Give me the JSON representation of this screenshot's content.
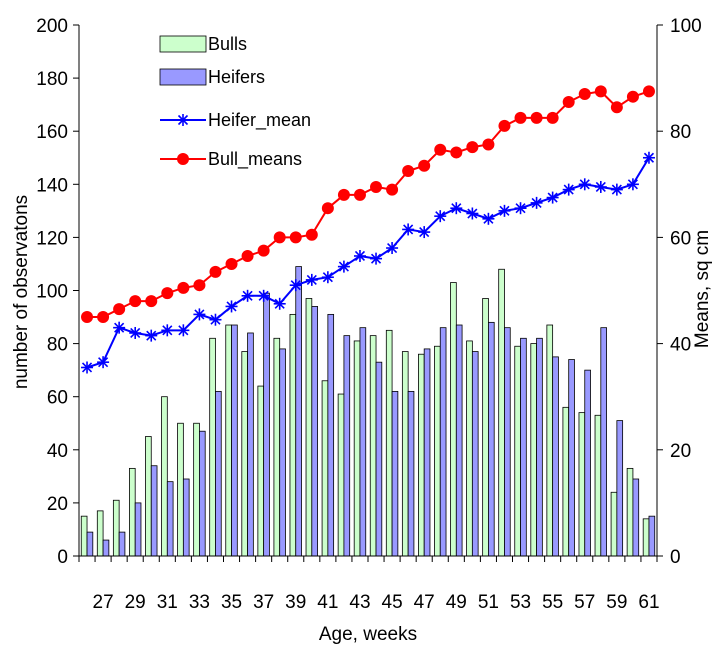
{
  "chart_data": {
    "type": "bar",
    "xlabel": "Age, weeks",
    "ylabel_left": "number of observatons",
    "ylabel_right": "Means, sq cm",
    "ylim_left": [
      0,
      200
    ],
    "ylim_right": [
      0,
      100
    ],
    "yticks_left": [
      "0",
      "20",
      "40",
      "60",
      "80",
      "100",
      "120",
      "140",
      "160",
      "180",
      "200"
    ],
    "yticks_right": [
      "0",
      "20",
      "40",
      "60",
      "80",
      "100"
    ],
    "x": [
      26,
      27,
      28,
      29,
      30,
      31,
      32,
      33,
      34,
      35,
      36,
      37,
      38,
      39,
      40,
      41,
      42,
      43,
      44,
      45,
      46,
      47,
      48,
      49,
      50,
      51,
      52,
      53,
      54,
      55,
      56,
      57,
      58,
      59,
      60,
      61
    ],
    "xtick_labels": [
      "27",
      "29",
      "31",
      "33",
      "35",
      "37",
      "39",
      "41",
      "43",
      "45",
      "47",
      "49",
      "51",
      "53",
      "55",
      "57",
      "59",
      "61"
    ],
    "xticks": [
      27,
      29,
      31,
      33,
      35,
      37,
      39,
      41,
      43,
      45,
      47,
      49,
      51,
      53,
      55,
      57,
      59,
      61
    ],
    "legend_position": "top-left",
    "grid": false,
    "series": [
      {
        "name": "Bulls",
        "type": "bar",
        "axis": "left",
        "color": "#ccffcc",
        "values": [
          15,
          17,
          21,
          33,
          45,
          60,
          50,
          50,
          82,
          87,
          77,
          64,
          82,
          91,
          97,
          66,
          61,
          81,
          83,
          85,
          77,
          76,
          79,
          103,
          81,
          97,
          108,
          79,
          80,
          87,
          56,
          54,
          53,
          24,
          33,
          14
        ]
      },
      {
        "name": "Heifers",
        "type": "bar",
        "axis": "left",
        "color": "#9999ff",
        "values": [
          9,
          6,
          9,
          20,
          34,
          28,
          29,
          47,
          62,
          87,
          84,
          99,
          78,
          109,
          94,
          91,
          83,
          86,
          73,
          62,
          62,
          78,
          86,
          87,
          77,
          88,
          86,
          82,
          82,
          75,
          74,
          70,
          86,
          51,
          29,
          15
        ]
      },
      {
        "name": "Heifer_mean",
        "type": "line",
        "axis": "right",
        "color": "#0000ff",
        "marker": "star",
        "values": [
          35.5,
          36.5,
          43,
          42,
          41.5,
          42.5,
          42.5,
          45.5,
          44.5,
          47,
          49,
          49,
          47.5,
          51,
          52,
          52.5,
          54.5,
          56.5,
          56,
          58,
          61.5,
          61,
          64,
          65.5,
          64.5,
          63.5,
          65,
          65.5,
          66.5,
          67.5,
          69,
          70,
          69.5,
          69,
          70,
          75
        ]
      },
      {
        "name": "Bull_means",
        "type": "line",
        "axis": "right",
        "color": "#ff0000",
        "marker": "circle",
        "values": [
          45,
          45,
          46.5,
          48,
          48,
          49.5,
          50.5,
          51,
          53.5,
          55,
          56.5,
          57.5,
          60,
          60,
          60.5,
          65.5,
          68,
          68,
          69.5,
          69,
          72.5,
          73.5,
          76.5,
          76,
          77,
          77.5,
          81,
          82.5,
          82.5,
          82.5,
          85.5,
          87,
          87.5,
          84.5,
          86.5,
          87.5
        ]
      }
    ]
  }
}
